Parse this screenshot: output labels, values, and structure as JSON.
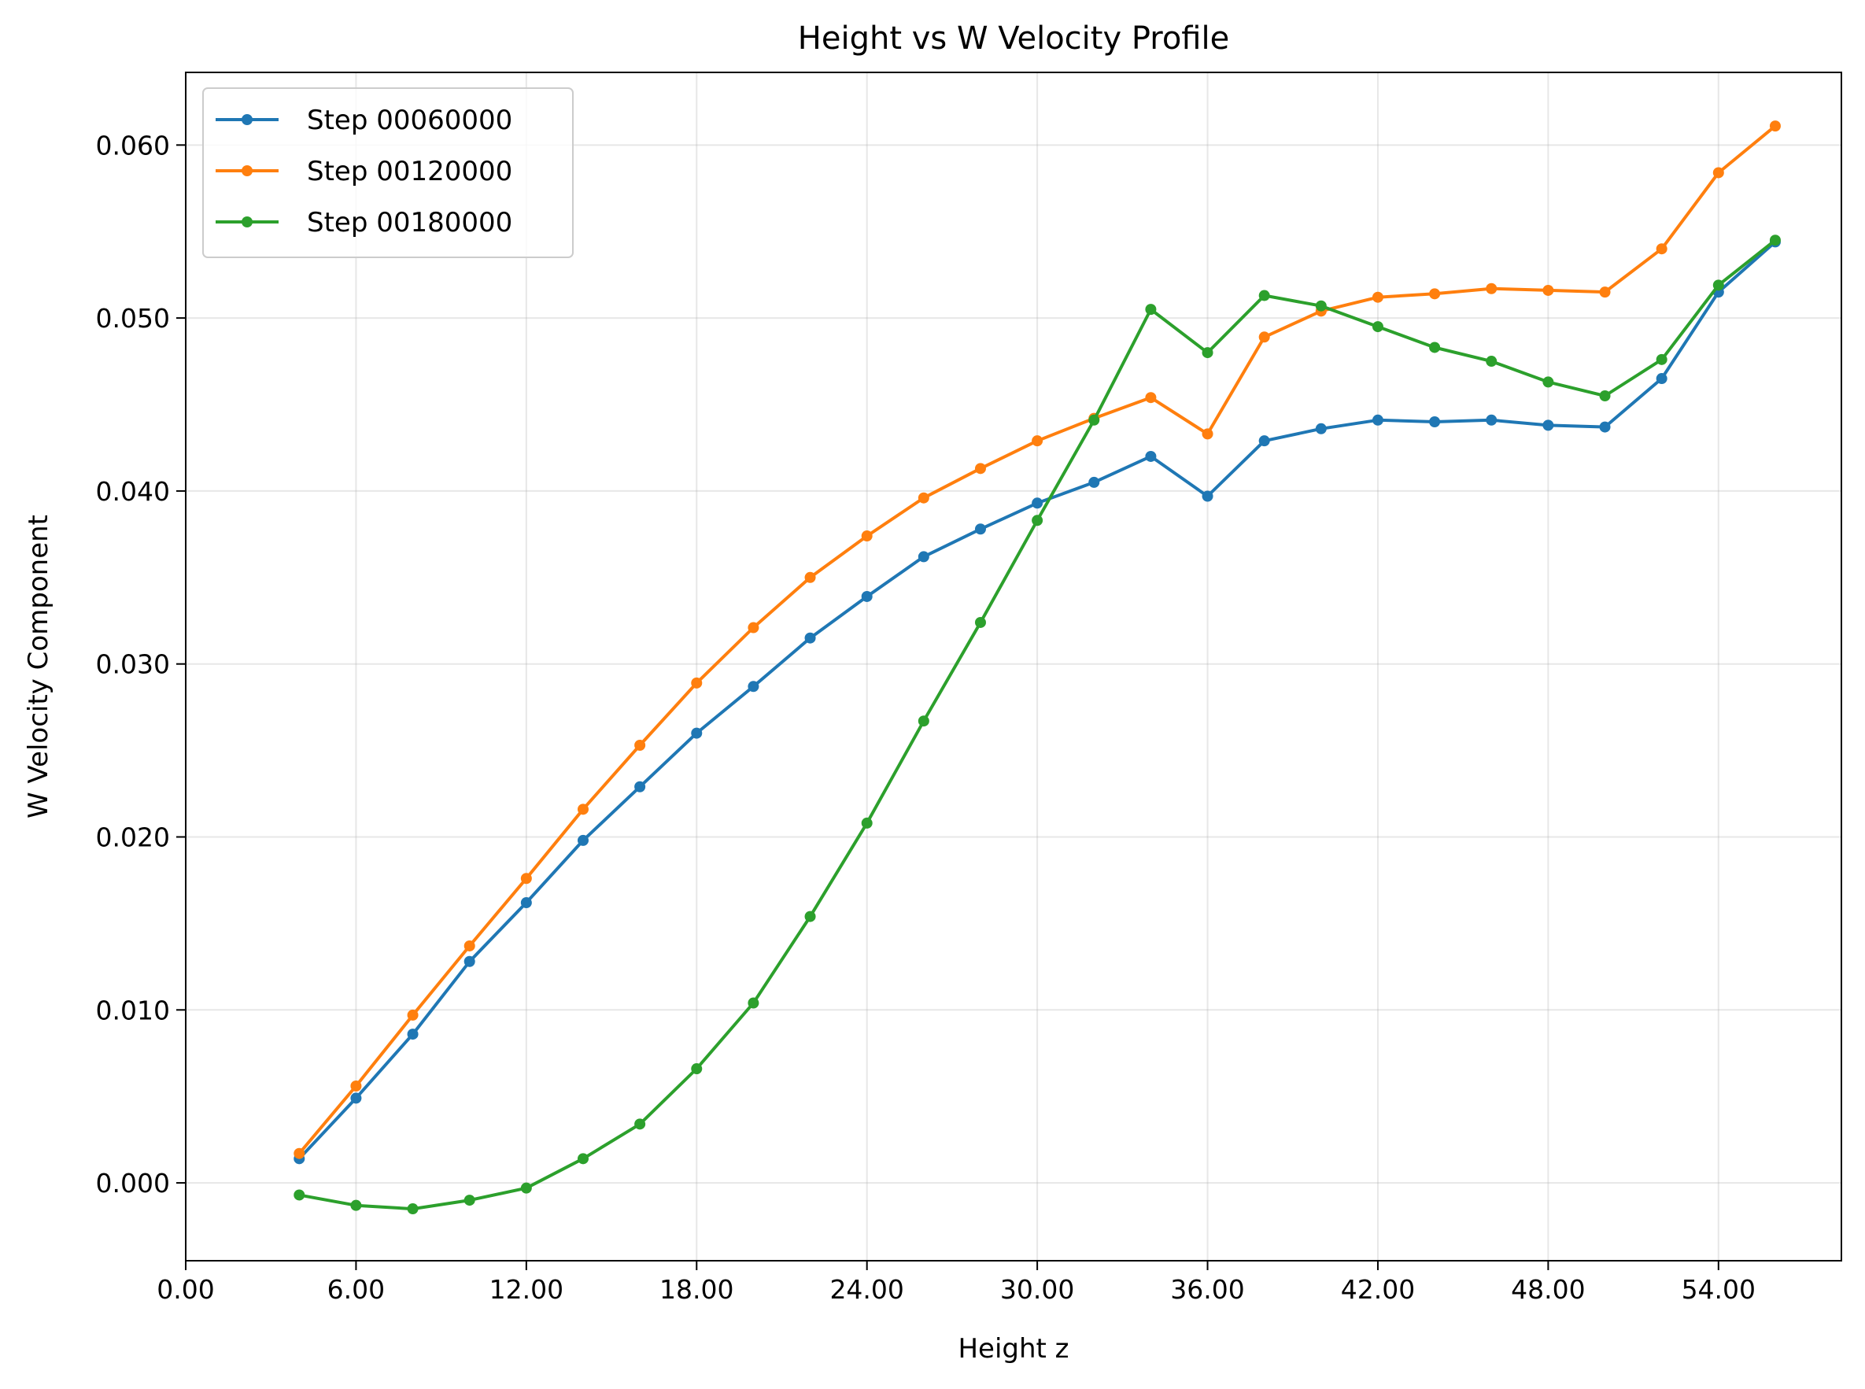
{
  "chart_data": {
    "type": "line",
    "title": "Height vs W Velocity Profile",
    "xlabel": "Height z",
    "ylabel": "W Velocity Component",
    "xlim": [
      0,
      58.33
    ],
    "ylim": [
      -0.0045,
      0.0642
    ],
    "xticks": [
      0,
      6,
      12,
      18,
      24,
      30,
      36,
      42,
      48,
      54
    ],
    "xtick_labels": [
      "0.00",
      "6.00",
      "12.00",
      "18.00",
      "24.00",
      "30.00",
      "36.00",
      "42.00",
      "48.00",
      "54.00"
    ],
    "yticks": [
      0.0,
      0.01,
      0.02,
      0.03,
      0.04,
      0.05,
      0.06
    ],
    "ytick_labels": [
      "0.000",
      "0.010",
      "0.020",
      "0.030",
      "0.040",
      "0.050",
      "0.060"
    ],
    "grid": true,
    "legend_position": "top-left",
    "x": [
      4,
      6,
      8,
      10,
      12,
      14,
      16,
      18,
      20,
      22,
      24,
      26,
      28,
      30,
      32,
      34,
      36,
      38,
      40,
      42,
      44,
      46,
      48,
      50,
      52,
      54,
      56
    ],
    "series": [
      {
        "name": "Step 00060000",
        "color": "#1f77b4",
        "values": [
          0.0014,
          0.0049,
          0.0086,
          0.0128,
          0.0162,
          0.0198,
          0.0229,
          0.026,
          0.0287,
          0.0315,
          0.0339,
          0.0362,
          0.0378,
          0.0393,
          0.0405,
          0.042,
          0.0397,
          0.0429,
          0.0436,
          0.0441,
          0.044,
          0.0441,
          0.0438,
          0.0437,
          0.0465,
          0.0515,
          0.0544
        ]
      },
      {
        "name": "Step 00120000",
        "color": "#ff7f0e",
        "values": [
          0.0017,
          0.0056,
          0.0097,
          0.0137,
          0.0176,
          0.0216,
          0.0253,
          0.0289,
          0.0321,
          0.035,
          0.0374,
          0.0396,
          0.0413,
          0.0429,
          0.0442,
          0.0454,
          0.0433,
          0.0489,
          0.0504,
          0.0512,
          0.0514,
          0.0517,
          0.0516,
          0.0515,
          0.054,
          0.0584,
          0.0611
        ]
      },
      {
        "name": "Step 00180000",
        "color": "#2ca02c",
        "values": [
          -0.0007,
          -0.0013,
          -0.0015,
          -0.001,
          -0.0003,
          0.0014,
          0.0034,
          0.0066,
          0.0104,
          0.0154,
          0.0208,
          0.0267,
          0.0324,
          0.0383,
          0.0441,
          0.0505,
          0.048,
          0.0513,
          0.0507,
          0.0495,
          0.0483,
          0.0475,
          0.0463,
          0.0455,
          0.0476,
          0.0519,
          0.0545
        ]
      }
    ]
  }
}
